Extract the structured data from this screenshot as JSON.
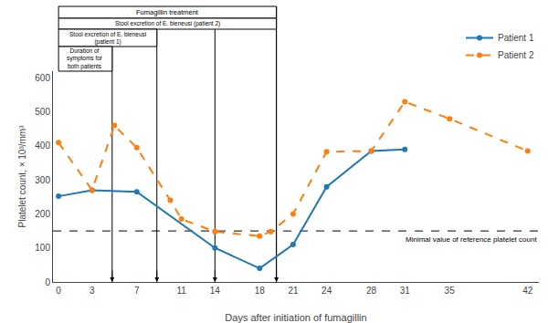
{
  "chart_data": {
    "type": "line",
    "xlabel": "Days after initiation of fumagillin",
    "ylabel": "Platelet count, × 10³/mm³",
    "series": [
      {
        "name": "Patient 1",
        "x": [
          0,
          3,
          7,
          14,
          18,
          21,
          24,
          28,
          31
        ],
        "values": [
          252,
          270,
          265,
          100,
          40,
          110,
          280,
          385,
          390
        ],
        "line_style": "solid",
        "marker": "circle"
      },
      {
        "name": "Patient 2",
        "x": [
          0,
          3,
          5,
          7,
          10,
          11,
          14,
          18,
          19,
          21,
          24,
          28,
          31,
          35,
          42
        ],
        "values": [
          410,
          270,
          460,
          395,
          240,
          185,
          148,
          135,
          148,
          200,
          383,
          385,
          530,
          480,
          385
        ],
        "line_style": "dashed",
        "marker": "circle"
      }
    ],
    "xlim": [
      -0.5,
      43
    ],
    "ylim": [
      0,
      620
    ],
    "xticks": [
      0,
      3,
      7,
      11,
      14,
      18,
      21,
      24,
      28,
      31,
      35,
      42
    ],
    "yticks": [
      0,
      100,
      200,
      300,
      400,
      500,
      600
    ],
    "grid": false,
    "legend": "upper right",
    "reference_line": {
      "y": 150,
      "label": "Minimal value of reference platelet count"
    },
    "periods": [
      {
        "label": "Fumagillin treatment",
        "start": 0,
        "end": 19.5
      },
      {
        "label": "Stool excretion of E. bieneusi (patient 2)",
        "start": 0,
        "end": 19.5
      },
      {
        "label": "Stool excretion of E. bieneusi\n(patient 1)",
        "start": 0,
        "end": 8.8
      },
      {
        "label": "Duration of\nsymptoms for\nboth patients",
        "start": 0,
        "end": 4.8
      }
    ],
    "arrows_x": [
      4.8,
      8.8,
      14,
      19.5
    ]
  }
}
